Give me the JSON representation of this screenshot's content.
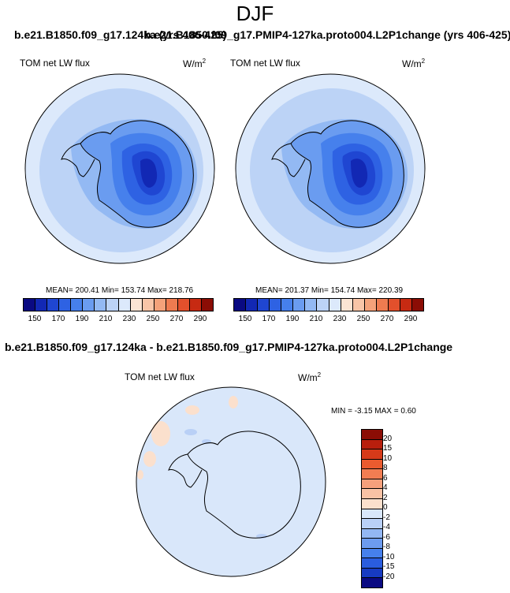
{
  "figure": {
    "season": "DJF",
    "top_title_left": "b.e21.B1850.f09_g17.124ka (yrs 406-425)",
    "top_title_right": "b.e21.B1850.f09_g17.PMIP4-127ka.proto004.L2P1change (yrs 406-425)",
    "diff_title": "b.e21.B1850.f09_g17.124ka - b.e21.B1850.f09_g17.PMIP4-127ka.proto004.L2P1change"
  },
  "panels": {
    "left": {
      "variable": "TOM net LW flux",
      "units": "W/m",
      "units_sup": "2",
      "stats": "MEAN= 200.41  Min= 153.74  Max= 218.76"
    },
    "right": {
      "variable": "TOM net LW flux",
      "units": "W/m",
      "units_sup": "2",
      "stats": "MEAN= 201.37  Min= 154.74  Max= 220.39"
    },
    "diff": {
      "variable": "TOM net LW flux",
      "units": "W/m",
      "units_sup": "2",
      "stats": "MIN =  -3.15 MAX =   0.60"
    }
  },
  "chart_data": [
    {
      "type": "heatmap",
      "projection": "south-polar-stereographic",
      "title": "b.e21.B1850.f09_g17.124ka (yrs 406-425)",
      "variable": "TOM net LW flux",
      "units": "W/m^2",
      "mean": 200.41,
      "min": 153.74,
      "max": 218.76,
      "contour_levels": [
        150,
        160,
        170,
        180,
        190,
        200,
        210,
        220,
        230,
        240,
        250,
        260,
        270,
        280,
        290
      ],
      "colorbar_ticks": [
        "150",
        "170",
        "190",
        "210",
        "230",
        "250",
        "270",
        "290"
      ],
      "colors": [
        "#0a0a82",
        "#1228b4",
        "#1f46d2",
        "#2e62e3",
        "#4680ec",
        "#6a9cf0",
        "#93b9f3",
        "#bcd3f6",
        "#dce9fb",
        "#fbe4d3",
        "#f8c5a7",
        "#f4a27a",
        "#ee7b50",
        "#e2502c",
        "#c72a12",
        "#8b0d05"
      ]
    },
    {
      "type": "heatmap",
      "projection": "south-polar-stereographic",
      "title": "b.e21.B1850.f09_g17.PMIP4-127ka.proto004.L2P1change (yrs 406-425)",
      "variable": "TOM net LW flux",
      "units": "W/m^2",
      "mean": 201.37,
      "min": 154.74,
      "max": 220.39,
      "contour_levels": [
        150,
        160,
        170,
        180,
        190,
        200,
        210,
        220,
        230,
        240,
        250,
        260,
        270,
        280,
        290
      ],
      "colorbar_ticks": [
        "150",
        "170",
        "190",
        "210",
        "230",
        "250",
        "270",
        "290"
      ],
      "colors": [
        "#0a0a82",
        "#1228b4",
        "#1f46d2",
        "#2e62e3",
        "#4680ec",
        "#6a9cf0",
        "#93b9f3",
        "#bcd3f6",
        "#dce9fb",
        "#fbe4d3",
        "#f8c5a7",
        "#f4a27a",
        "#ee7b50",
        "#e2502c",
        "#c72a12",
        "#8b0d05"
      ]
    },
    {
      "type": "heatmap",
      "projection": "south-polar-stereographic",
      "title": "b.e21.B1850.f09_g17.124ka - b.e21.B1850.f09_g17.PMIP4-127ka.proto004.L2P1change",
      "variable": "TOM net LW flux",
      "units": "W/m^2",
      "min": -3.15,
      "max": 0.6,
      "colorbar_ticks": [
        "20",
        "15",
        "10",
        "8",
        "6",
        "4",
        "2",
        "0",
        "-2",
        "-4",
        "-6",
        "-8",
        "-10",
        "-15",
        "-20"
      ],
      "colors": [
        "#8b0d05",
        "#b81f0d",
        "#d63a19",
        "#ea5b2f",
        "#f27d52",
        "#f6a07c",
        "#f9c2a5",
        "#fbe0cd",
        "#d9e7fa",
        "#b9d0f6",
        "#93b7f3",
        "#6c9bef",
        "#4680ec",
        "#2a5ddf",
        "#173bc1",
        "#0a0a82"
      ]
    }
  ]
}
